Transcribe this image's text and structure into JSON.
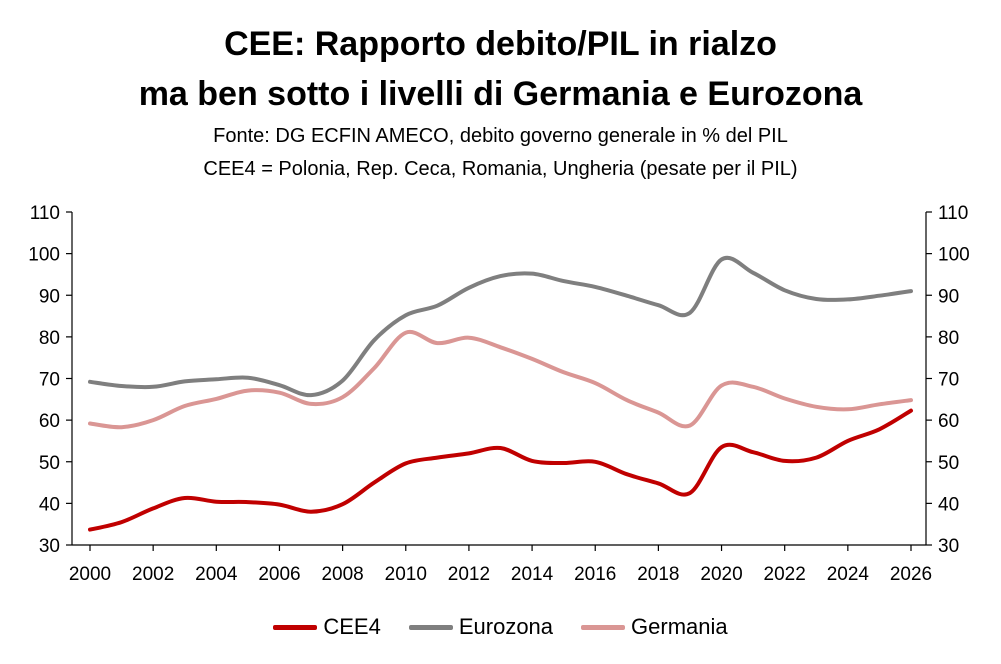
{
  "title_line1": "CEE: Rapporto debito/PIL in rialzo",
  "title_line2": "ma ben sotto i livelli di Germania e Eurozona",
  "subtitle_line1": "Fonte: DG ECFIN AMECO, debito governo generale in % del PIL",
  "subtitle_line2": "CEE4 = Polonia, Rep. Ceca, Romania, Ungheria (pesate per il PIL)",
  "chart_data": {
    "type": "line",
    "x": [
      2000,
      2001,
      2002,
      2003,
      2004,
      2005,
      2006,
      2007,
      2008,
      2009,
      2010,
      2011,
      2012,
      2013,
      2014,
      2015,
      2016,
      2017,
      2018,
      2019,
      2020,
      2021,
      2022,
      2023,
      2024,
      2025,
      2026
    ],
    "xticks": [
      "2000",
      "2002",
      "2004",
      "2006",
      "2008",
      "2010",
      "2012",
      "2014",
      "2016",
      "2018",
      "2020",
      "2022",
      "2024",
      "2026"
    ],
    "yticks": [
      "30",
      "40",
      "50",
      "60",
      "70",
      "80",
      "90",
      "100",
      "110"
    ],
    "ylim": [
      30,
      110
    ],
    "xlim": [
      2000,
      2026
    ],
    "grid": false,
    "legend_position": "bottom",
    "series": [
      {
        "name": "CEE4",
        "color": "#c00000",
        "values": [
          33.7,
          35.5,
          38.8,
          41.3,
          40.4,
          40.3,
          39.7,
          38.0,
          39.8,
          45.0,
          49.6,
          51.0,
          52.0,
          53.3,
          50.2,
          49.7,
          50.0,
          47.0,
          44.8,
          42.5,
          53.5,
          52.3,
          50.2,
          51.0,
          55.0,
          57.8,
          62.3
        ]
      },
      {
        "name": "Eurozona",
        "color": "#7f7f7f",
        "values": [
          69.2,
          68.2,
          68.0,
          69.3,
          69.8,
          70.2,
          68.4,
          66.0,
          69.5,
          79.2,
          85.2,
          87.5,
          91.8,
          94.6,
          95.2,
          93.4,
          92.0,
          89.9,
          87.6,
          85.8,
          98.6,
          95.4,
          91.2,
          89.1,
          89.0,
          89.9,
          91.0
        ]
      },
      {
        "name": "Germania",
        "color": "#da9694",
        "values": [
          59.2,
          58.3,
          60.0,
          63.4,
          65.1,
          67.1,
          66.6,
          63.9,
          65.5,
          72.5,
          81.0,
          78.5,
          79.8,
          77.5,
          74.7,
          71.5,
          68.9,
          64.8,
          61.8,
          58.7,
          68.3,
          68.0,
          65.2,
          63.2,
          62.6,
          63.8,
          64.8
        ]
      }
    ]
  }
}
